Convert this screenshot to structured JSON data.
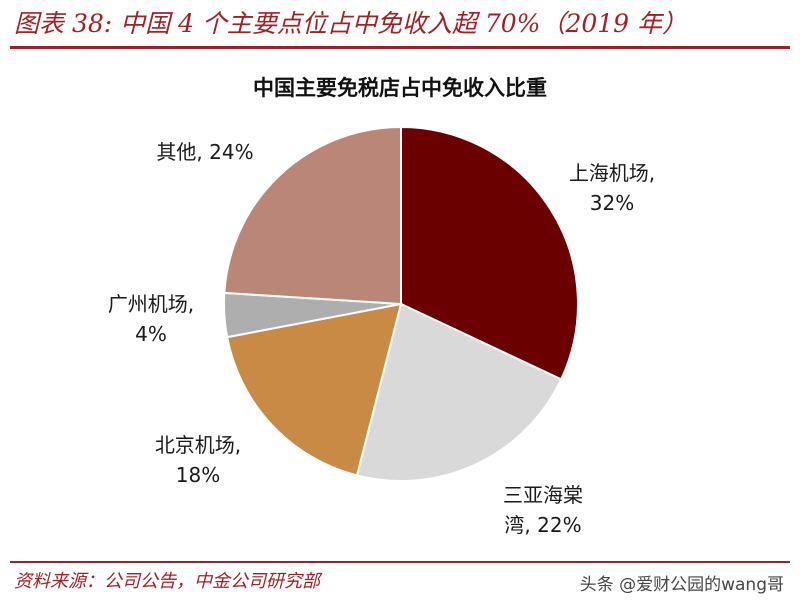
{
  "header": {
    "title": "图表 38:  中国 4 个主要点位占中免收入超 70%（2019 年）"
  },
  "source": "资料来源：公司公告，中金公司研究部",
  "watermark": "头条 @爱财公园的wang哥",
  "chart_data": {
    "type": "pie",
    "title": "中国主要免税店占中免收入比重",
    "slices": [
      {
        "label": "上海机场,",
        "value_label": "32%",
        "value": 32,
        "color": "#6b0000"
      },
      {
        "label": "三亚海棠",
        "value_label": "湾, 22%",
        "value": 22,
        "color": "#d9d9d9"
      },
      {
        "label": "北京机场,",
        "value_label": "18%",
        "value": 18,
        "color": "#c88a45"
      },
      {
        "label": "广州机场,",
        "value_label": "4%",
        "value": 4,
        "color": "#aeaeae"
      },
      {
        "label": "其他, 24%",
        "value_label": "",
        "value": 24,
        "color": "#b98678"
      }
    ]
  }
}
